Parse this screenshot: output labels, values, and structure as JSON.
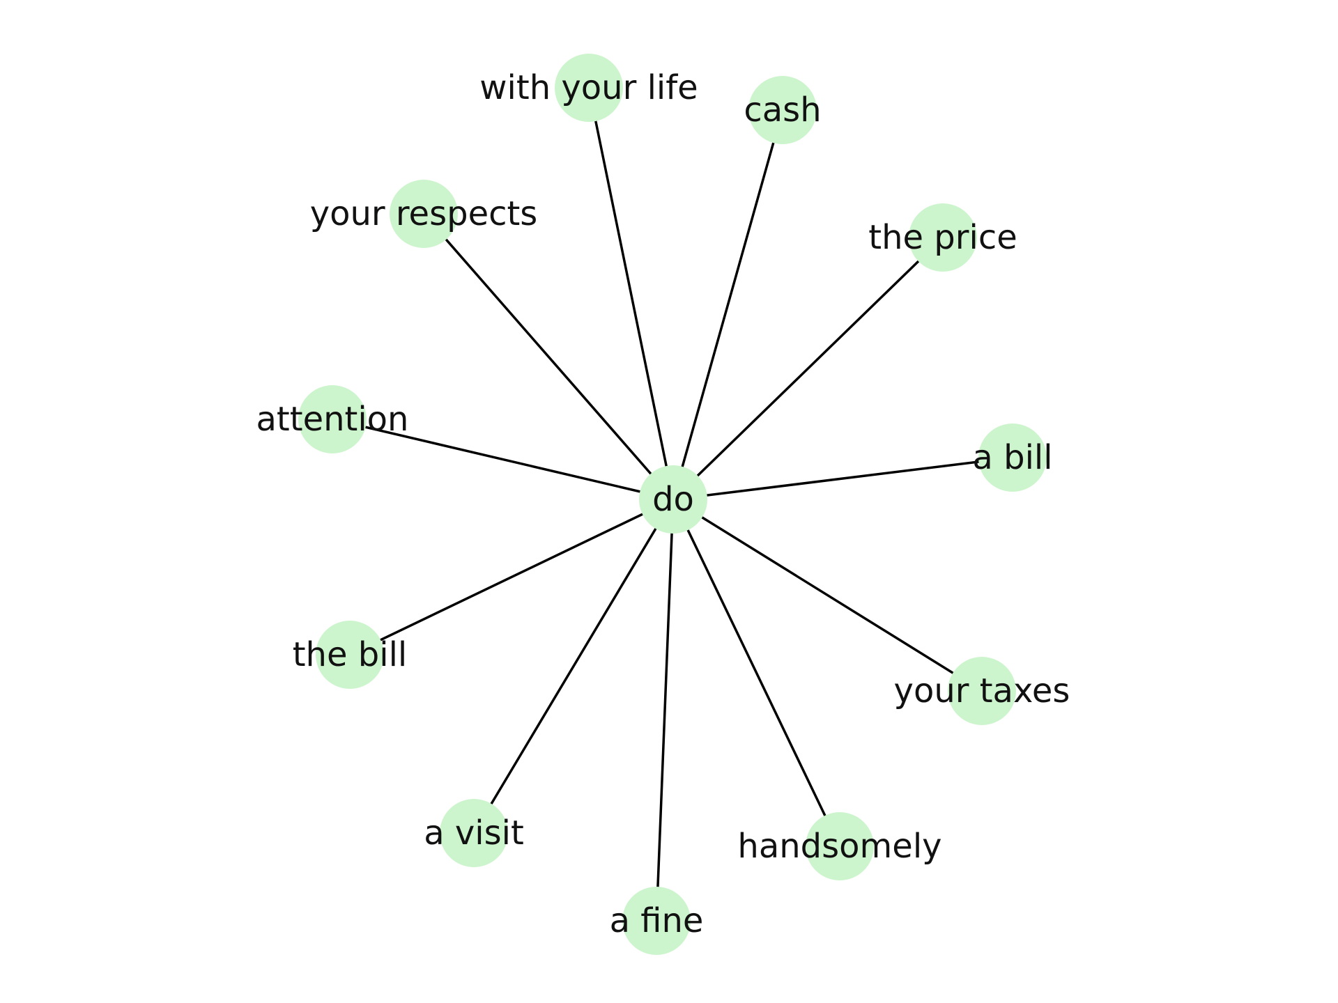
{
  "graph": {
    "center": {
      "id": "do",
      "label": "do"
    },
    "nodes": [
      {
        "id": "with_your_life",
        "label": "with your life"
      },
      {
        "id": "cash",
        "label": "cash"
      },
      {
        "id": "your_respects",
        "label": "your respects"
      },
      {
        "id": "the_price",
        "label": "the price"
      },
      {
        "id": "attention",
        "label": "attention"
      },
      {
        "id": "a_bill",
        "label": "a bill"
      },
      {
        "id": "the_bill",
        "label": "the bill"
      },
      {
        "id": "your_taxes",
        "label": "your taxes"
      },
      {
        "id": "a_visit",
        "label": "a visit"
      },
      {
        "id": "handsomely",
        "label": "handsomely"
      },
      {
        "id": "a_fine",
        "label": "a fine"
      }
    ],
    "edges": [
      [
        "do",
        "with_your_life"
      ],
      [
        "do",
        "cash"
      ],
      [
        "do",
        "your_respects"
      ],
      [
        "do",
        "the_price"
      ],
      [
        "do",
        "attention"
      ],
      [
        "do",
        "a_bill"
      ],
      [
        "do",
        "the_bill"
      ],
      [
        "do",
        "your_taxes"
      ],
      [
        "do",
        "a_visit"
      ],
      [
        "do",
        "handsomely"
      ],
      [
        "do",
        "a_fine"
      ]
    ],
    "colors": {
      "node_fill": "#cdf5cd",
      "edge": "#000000",
      "label": "#111111"
    }
  }
}
